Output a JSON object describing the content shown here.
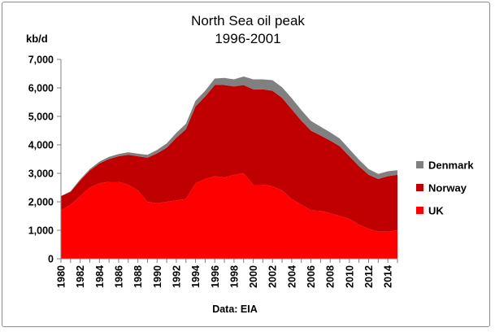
{
  "chart_data": {
    "type": "area",
    "stacked": true,
    "title": [
      "North Sea oil peak",
      "1996-2001"
    ],
    "ylabel": "kb/d",
    "xlabel": "",
    "source": "Data: EIA",
    "ylim": [
      0,
      7000
    ],
    "yticks": [
      0,
      1000,
      2000,
      3000,
      4000,
      5000,
      6000,
      7000
    ],
    "ytick_labels": [
      "0",
      "1,000",
      "2,000",
      "3,000",
      "4,000",
      "5,000",
      "6,000",
      "7,000"
    ],
    "xlim": [
      1980,
      2015
    ],
    "xtick_labels": [
      "1980",
      "1982",
      "1984",
      "1986",
      "1988",
      "1990",
      "1992",
      "1994",
      "1996",
      "1998",
      "2000",
      "2002",
      "2004",
      "2006",
      "2008",
      "2010",
      "2012",
      "2014"
    ],
    "grid": false,
    "legend_position": "right",
    "x": [
      1980,
      1981,
      1982,
      1983,
      1984,
      1985,
      1986,
      1987,
      1988,
      1989,
      1990,
      1991,
      1992,
      1993,
      1994,
      1995,
      1996,
      1997,
      1998,
      1999,
      2000,
      2001,
      2002,
      2003,
      2004,
      2005,
      2006,
      2007,
      2008,
      2009,
      2010,
      2011,
      2012,
      2013,
      2014,
      2015
    ],
    "series": [
      {
        "name": "UK",
        "color": "#ff0000",
        "values": [
          1700,
          1900,
          2200,
          2500,
          2650,
          2700,
          2700,
          2600,
          2400,
          2000,
          1950,
          2000,
          2050,
          2100,
          2650,
          2800,
          2900,
          2850,
          2950,
          3000,
          2600,
          2600,
          2550,
          2400,
          2100,
          1900,
          1700,
          1680,
          1600,
          1500,
          1400,
          1200,
          1050,
          950,
          950,
          1000
        ]
      },
      {
        "name": "Norway",
        "color": "#c00000",
        "values": [
          500,
          450,
          550,
          600,
          700,
          800,
          900,
          1050,
          1200,
          1550,
          1750,
          1900,
          2200,
          2450,
          2700,
          2900,
          3200,
          3250,
          3100,
          3100,
          3350,
          3350,
          3350,
          3250,
          3150,
          2950,
          2800,
          2650,
          2550,
          2450,
          2200,
          2050,
          1900,
          1850,
          1950,
          1950
        ]
      },
      {
        "name": "Denmark",
        "color": "#808080",
        "values": [
          0,
          20,
          40,
          50,
          60,
          80,
          80,
          90,
          90,
          100,
          120,
          150,
          170,
          190,
          200,
          200,
          230,
          250,
          250,
          300,
          350,
          350,
          370,
          370,
          390,
          370,
          340,
          310,
          290,
          270,
          250,
          230,
          200,
          180,
          170,
          160
        ]
      }
    ]
  }
}
